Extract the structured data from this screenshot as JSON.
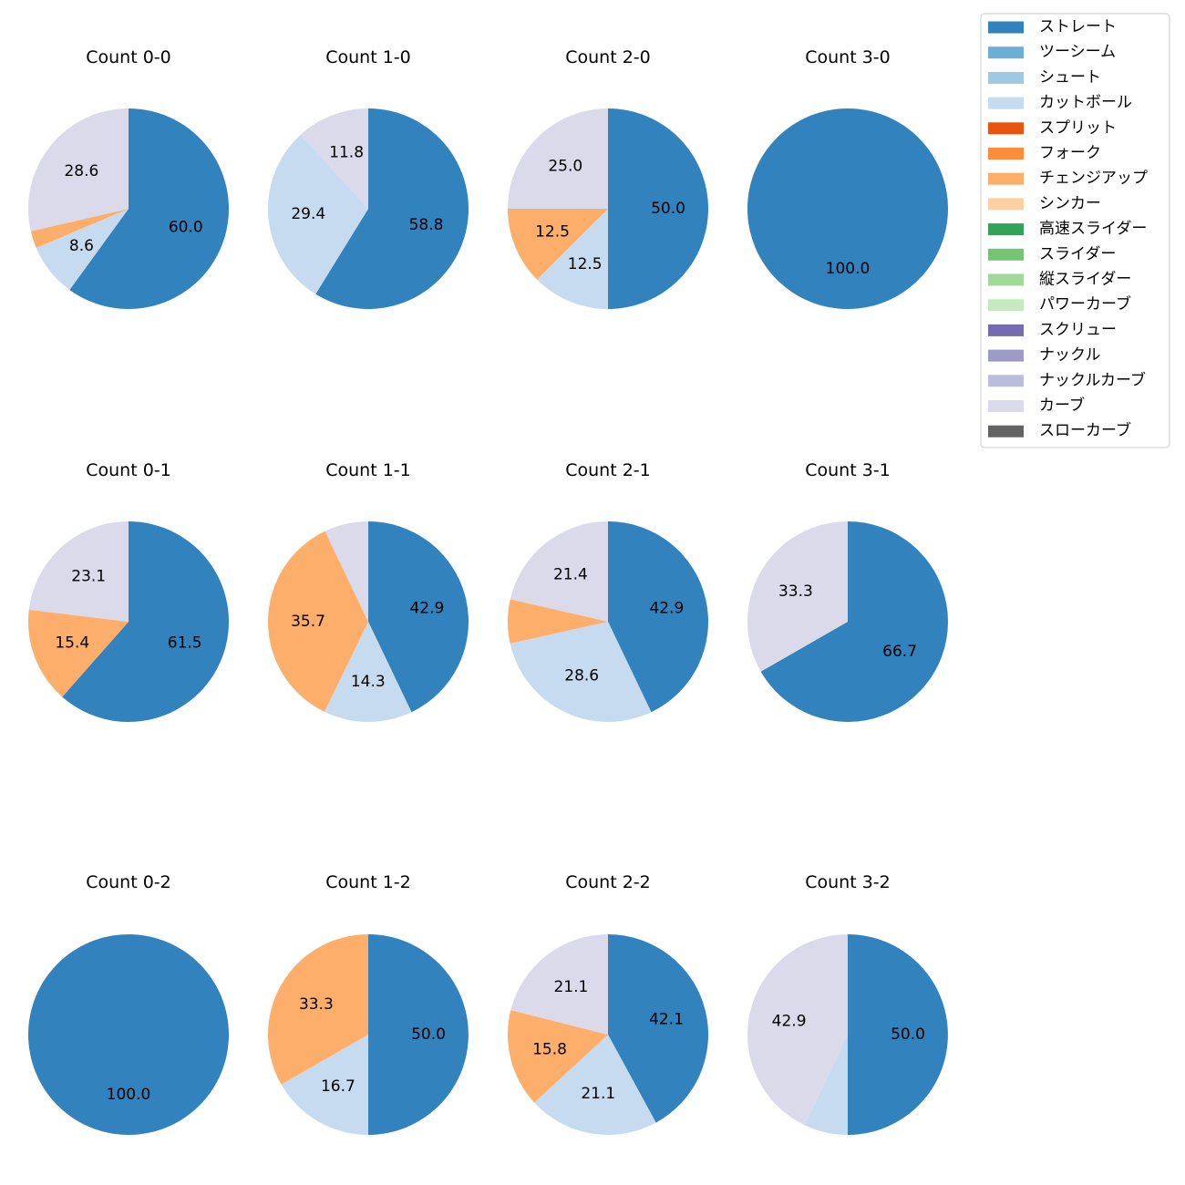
{
  "chart_data": {
    "type": "pie",
    "legend_position": "top-right",
    "legend": [
      {
        "name": "ストレート",
        "color": "#3182bd"
      },
      {
        "name": "ツーシーム",
        "color": "#6baed6"
      },
      {
        "name": "シュート",
        "color": "#9ecae1"
      },
      {
        "name": "カットボール",
        "color": "#c6dbef"
      },
      {
        "name": "スプリット",
        "color": "#e6550d"
      },
      {
        "name": "フォーク",
        "color": "#fd8d3c"
      },
      {
        "name": "チェンジアップ",
        "color": "#fdae6b"
      },
      {
        "name": "シンカー",
        "color": "#fdd0a2"
      },
      {
        "name": "高速スライダー",
        "color": "#31a354"
      },
      {
        "name": "スライダー",
        "color": "#74c476"
      },
      {
        "name": "縦スライダー",
        "color": "#a1d99b"
      },
      {
        "name": "パワーカーブ",
        "color": "#c7e9c0"
      },
      {
        "name": "スクリュー",
        "color": "#756bb1"
      },
      {
        "name": "ナックル",
        "color": "#9e9ac8"
      },
      {
        "name": "ナックルカーブ",
        "color": "#bcbddc"
      },
      {
        "name": "カーブ",
        "color": "#dadaeb"
      },
      {
        "name": "スローカーブ",
        "color": "#636363"
      }
    ],
    "charts": [
      {
        "title": "Count 0-0",
        "slices": [
          {
            "pitch": "ストレート",
            "value": 60.0,
            "label": "60.0"
          },
          {
            "pitch": "カットボール",
            "value": 8.6,
            "label": "8.6"
          },
          {
            "pitch": "チェンジアップ",
            "value": 2.8,
            "label": ""
          },
          {
            "pitch": "カーブ",
            "value": 28.6,
            "label": "28.6"
          }
        ]
      },
      {
        "title": "Count 1-0",
        "slices": [
          {
            "pitch": "ストレート",
            "value": 58.8,
            "label": "58.8"
          },
          {
            "pitch": "カットボール",
            "value": 29.4,
            "label": "29.4"
          },
          {
            "pitch": "カーブ",
            "value": 11.8,
            "label": "11.8"
          }
        ]
      },
      {
        "title": "Count 2-0",
        "slices": [
          {
            "pitch": "ストレート",
            "value": 50.0,
            "label": "50.0"
          },
          {
            "pitch": "カットボール",
            "value": 12.5,
            "label": "12.5"
          },
          {
            "pitch": "チェンジアップ",
            "value": 12.5,
            "label": "12.5"
          },
          {
            "pitch": "カーブ",
            "value": 25.0,
            "label": "25.0"
          }
        ]
      },
      {
        "title": "Count 3-0",
        "slices": [
          {
            "pitch": "ストレート",
            "value": 100.0,
            "label": "100.0"
          }
        ]
      },
      {
        "title": "Count 0-1",
        "slices": [
          {
            "pitch": "ストレート",
            "value": 61.5,
            "label": "61.5"
          },
          {
            "pitch": "チェンジアップ",
            "value": 15.4,
            "label": "15.4"
          },
          {
            "pitch": "カーブ",
            "value": 23.1,
            "label": "23.1"
          }
        ]
      },
      {
        "title": "Count 1-1",
        "slices": [
          {
            "pitch": "ストレート",
            "value": 42.9,
            "label": "42.9"
          },
          {
            "pitch": "カットボール",
            "value": 14.3,
            "label": "14.3"
          },
          {
            "pitch": "チェンジアップ",
            "value": 35.7,
            "label": "35.7"
          },
          {
            "pitch": "カーブ",
            "value": 7.1,
            "label": ""
          }
        ]
      },
      {
        "title": "Count 2-1",
        "slices": [
          {
            "pitch": "ストレート",
            "value": 42.9,
            "label": "42.9"
          },
          {
            "pitch": "カットボール",
            "value": 28.6,
            "label": "28.6"
          },
          {
            "pitch": "チェンジアップ",
            "value": 7.1,
            "label": ""
          },
          {
            "pitch": "カーブ",
            "value": 21.4,
            "label": "21.4"
          }
        ]
      },
      {
        "title": "Count 3-1",
        "slices": [
          {
            "pitch": "ストレート",
            "value": 66.7,
            "label": "66.7"
          },
          {
            "pitch": "カーブ",
            "value": 33.3,
            "label": "33.3"
          }
        ]
      },
      {
        "title": "Count 0-2",
        "slices": [
          {
            "pitch": "ストレート",
            "value": 100.0,
            "label": "100.0"
          }
        ]
      },
      {
        "title": "Count 1-2",
        "slices": [
          {
            "pitch": "ストレート",
            "value": 50.0,
            "label": "50.0"
          },
          {
            "pitch": "カットボール",
            "value": 16.7,
            "label": "16.7"
          },
          {
            "pitch": "チェンジアップ",
            "value": 33.3,
            "label": "33.3"
          }
        ]
      },
      {
        "title": "Count 2-2",
        "slices": [
          {
            "pitch": "ストレート",
            "value": 42.1,
            "label": "42.1"
          },
          {
            "pitch": "カットボール",
            "value": 21.1,
            "label": "21.1"
          },
          {
            "pitch": "チェンジアップ",
            "value": 15.8,
            "label": "15.8"
          },
          {
            "pitch": "カーブ",
            "value": 21.1,
            "label": "21.1"
          }
        ]
      },
      {
        "title": "Count 3-2",
        "slices": [
          {
            "pitch": "ストレート",
            "value": 50.0,
            "label": "50.0"
          },
          {
            "pitch": "カットボール",
            "value": 7.1,
            "label": ""
          },
          {
            "pitch": "カーブ",
            "value": 42.9,
            "label": "42.9"
          }
        ]
      }
    ]
  }
}
